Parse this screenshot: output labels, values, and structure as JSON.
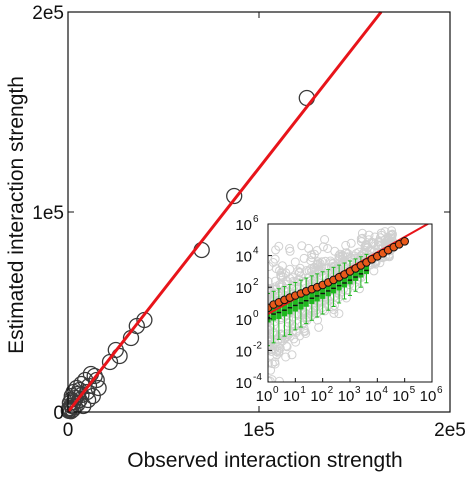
{
  "chart_data": [
    {
      "type": "scatter",
      "xlabel": "Observed interaction strength",
      "ylabel": "Estimated interaction strength",
      "xlim": [
        0,
        200000
      ],
      "ylim": [
        0,
        200000
      ],
      "x_ticks": [
        {
          "v": 0,
          "label": "0"
        },
        {
          "v": 100000,
          "label": "1e5"
        },
        {
          "v": 200000,
          "label": "2e5"
        }
      ],
      "y_ticks": [
        {
          "v": 0,
          "label": "0"
        },
        {
          "v": 100000,
          "label": "1e5"
        },
        {
          "v": 200000,
          "label": "2e5"
        }
      ],
      "fit_line": {
        "slope": 1.22,
        "intercept": 0,
        "color": "#e8141a"
      },
      "marker_color": "#3a3a3a",
      "points": [
        [
          125000,
          157000
        ],
        [
          87000,
          108000
        ],
        [
          70000,
          81000
        ],
        [
          40000,
          46000
        ],
        [
          36000,
          43000
        ],
        [
          33000,
          37000
        ],
        [
          25000,
          31000
        ],
        [
          27000,
          28000
        ],
        [
          22000,
          25000
        ],
        [
          14000,
          18000
        ],
        [
          12000,
          19000
        ],
        [
          9000,
          16000
        ],
        [
          11000,
          13000
        ],
        [
          10000,
          10000
        ],
        [
          13000,
          8000
        ],
        [
          7000,
          14000
        ],
        [
          6000,
          11000
        ],
        [
          5000,
          9000
        ],
        [
          4000,
          7000
        ],
        [
          3000,
          5000
        ],
        [
          5000,
          4000
        ],
        [
          2000,
          3000
        ],
        [
          1000,
          2000
        ],
        [
          2500,
          1200
        ],
        [
          800,
          900
        ],
        [
          400,
          600
        ],
        [
          1500,
          400
        ],
        [
          3500,
          2500
        ],
        [
          6000,
          6000
        ],
        [
          8000,
          3000
        ],
        [
          2000,
          8000
        ],
        [
          1000,
          4500
        ],
        [
          4500,
          12000
        ],
        [
          7000,
          8500
        ],
        [
          10500,
          6000
        ],
        [
          600,
          1600
        ],
        [
          1800,
          6200
        ],
        [
          3000,
          10000
        ],
        [
          15000,
          16000
        ],
        [
          16000,
          12000
        ]
      ]
    },
    {
      "type": "scatter",
      "scale": "log",
      "xlim": [
        1,
        1000000
      ],
      "ylim": [
        0.0001,
        1000000
      ],
      "x_ticks": [
        {
          "v": 1,
          "e": "0"
        },
        {
          "v": 10,
          "e": "1"
        },
        {
          "v": 100,
          "e": "2"
        },
        {
          "v": 1000,
          "e": "3"
        },
        {
          "v": 10000,
          "e": "4"
        },
        {
          "v": 100000,
          "e": "5"
        },
        {
          "v": 1000000,
          "e": "6"
        }
      ],
      "y_ticks": [
        {
          "v": 0.0001,
          "e": "-4"
        },
        {
          "v": 0.01,
          "e": "-2"
        },
        {
          "v": 1,
          "e": "0"
        },
        {
          "v": 100,
          "e": "2"
        },
        {
          "v": 10000,
          "e": "4"
        },
        {
          "v": 1000000,
          "e": "6"
        }
      ],
      "tick_base": "10",
      "fit_line": {
        "slope": 1.22,
        "color": "#e8141a"
      },
      "background_points_color": "#d0d0d0",
      "box_color": "#1fb81f",
      "mean_marker_fill": "#e8591a",
      "means": [
        [
          1,
          5
        ],
        [
          1.6,
          8
        ],
        [
          2.5,
          11
        ],
        [
          4,
          16
        ],
        [
          6.3,
          22
        ],
        [
          10,
          30
        ],
        [
          16,
          40
        ],
        [
          25,
          55
        ],
        [
          40,
          75
        ],
        [
          63,
          100
        ],
        [
          100,
          140
        ],
        [
          160,
          200
        ],
        [
          250,
          290
        ],
        [
          400,
          430
        ],
        [
          630,
          650
        ],
        [
          1000,
          1000
        ],
        [
          1600,
          1550
        ],
        [
          2500,
          2400
        ],
        [
          4000,
          3700
        ],
        [
          6300,
          5800
        ],
        [
          10000,
          9000
        ],
        [
          16000,
          14000
        ],
        [
          25000,
          22000
        ],
        [
          40000,
          34000
        ],
        [
          63000,
          52000
        ],
        [
          100000,
          80000
        ]
      ],
      "boxes": [
        {
          "x": 1,
          "q1": 0.6,
          "median": 1.2,
          "q3": 3,
          "lo": 0.02,
          "hi": 40
        },
        {
          "x": 1.6,
          "q1": 0.8,
          "median": 2,
          "q3": 4.5,
          "lo": 0.03,
          "hi": 55
        },
        {
          "x": 2.5,
          "q1": 1,
          "median": 2.5,
          "q3": 6,
          "lo": 0.05,
          "hi": 80
        },
        {
          "x": 4,
          "q1": 1.5,
          "median": 3.5,
          "q3": 9,
          "lo": 0.08,
          "hi": 110
        },
        {
          "x": 6.3,
          "q1": 2,
          "median": 5,
          "q3": 13,
          "lo": 0.1,
          "hi": 150
        },
        {
          "x": 10,
          "q1": 3,
          "median": 7,
          "q3": 18,
          "lo": 0.2,
          "hi": 200
        },
        {
          "x": 16,
          "q1": 4,
          "median": 10,
          "q3": 25,
          "lo": 0.3,
          "hi": 280
        },
        {
          "x": 25,
          "q1": 6,
          "median": 14,
          "q3": 35,
          "lo": 0.5,
          "hi": 380
        },
        {
          "x": 40,
          "q1": 9,
          "median": 20,
          "q3": 50,
          "lo": 0.8,
          "hi": 520
        },
        {
          "x": 63,
          "q1": 13,
          "median": 28,
          "q3": 70,
          "lo": 1.3,
          "hi": 700
        },
        {
          "x": 100,
          "q1": 19,
          "median": 40,
          "q3": 100,
          "lo": 2,
          "hi": 950
        },
        {
          "x": 160,
          "q1": 28,
          "median": 58,
          "q3": 140,
          "lo": 3.5,
          "hi": 1300
        },
        {
          "x": 250,
          "q1": 42,
          "median": 85,
          "q3": 200,
          "lo": 6,
          "hi": 1800
        },
        {
          "x": 400,
          "q1": 65,
          "median": 125,
          "q3": 290,
          "lo": 10,
          "hi": 2500
        },
        {
          "x": 630,
          "q1": 100,
          "median": 185,
          "q3": 420,
          "lo": 18,
          "hi": 3400
        },
        {
          "x": 1000,
          "q1": 160,
          "median": 280,
          "q3": 620,
          "lo": 30,
          "hi": 4600
        },
        {
          "x": 1600,
          "q1": 260,
          "median": 440,
          "q3": 920,
          "lo": 55,
          "hi": 6200
        },
        {
          "x": 2500,
          "q1": 420,
          "median": 700,
          "q3": 1400,
          "lo": 100,
          "hi": 8500
        },
        {
          "x": 4000,
          "q1": 700,
          "median": 1150,
          "q3": 2200,
          "lo": 190,
          "hi": 12000
        }
      ]
    }
  ]
}
